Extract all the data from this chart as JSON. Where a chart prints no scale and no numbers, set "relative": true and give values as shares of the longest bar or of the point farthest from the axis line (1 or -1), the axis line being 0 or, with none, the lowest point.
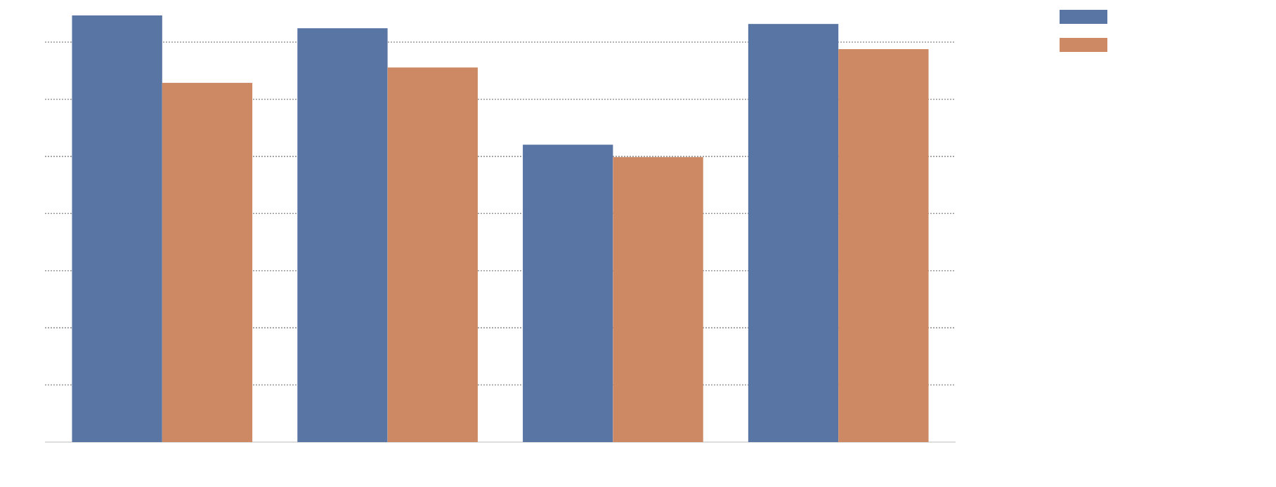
{
  "chart_data": {
    "type": "bar",
    "relative": true,
    "categories": [
      null,
      null,
      null,
      null
    ],
    "series": [
      {
        "color": "#5875a4",
        "values": [
          1,
          0.97,
          0.697,
          0.98
        ]
      },
      {
        "color": "#cc8963",
        "values": [
          0.842,
          0.878,
          0.668,
          0.921
        ]
      }
    ],
    "grid": "y"
  }
}
